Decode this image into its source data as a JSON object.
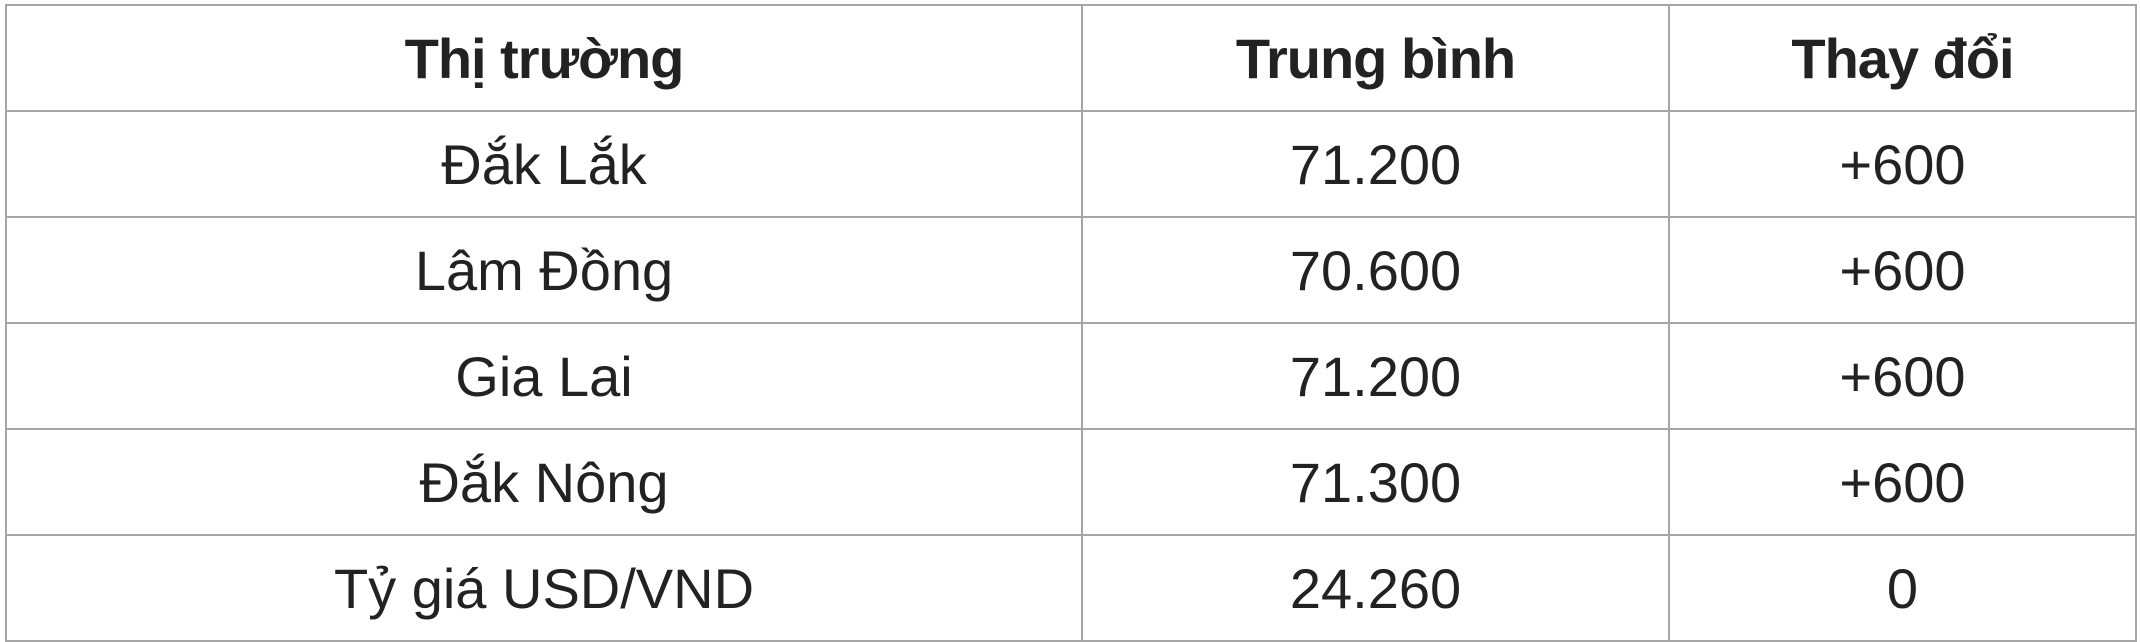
{
  "table": {
    "header": [
      "Thị trường",
      "Trung bình",
      "Thay đổi"
    ],
    "rows": [
      [
        "Đắk Lắk",
        "71.200",
        "+600"
      ],
      [
        "Lâm Đồng",
        "70.600",
        "+600"
      ],
      [
        "Gia Lai",
        "71.200",
        "+600"
      ],
      [
        "Đắk Nông",
        "71.300",
        "+600"
      ],
      [
        "Tỷ giá USD/VND",
        "24.260",
        "0"
      ]
    ]
  }
}
